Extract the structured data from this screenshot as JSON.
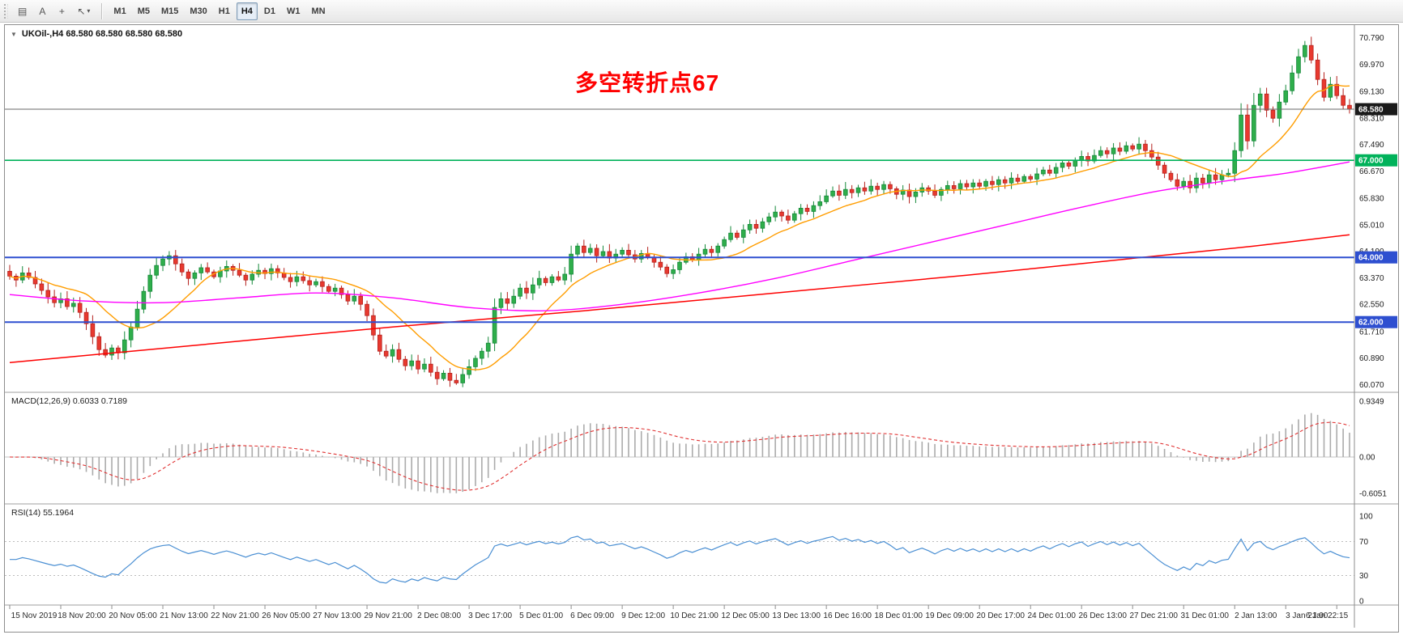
{
  "toolbar": {
    "icons": [
      {
        "name": "chart-window-icon",
        "glyph": "▤"
      },
      {
        "name": "text-label-icon",
        "glyph": "A"
      },
      {
        "name": "crosshair-icon",
        "glyph": "+"
      },
      {
        "name": "cursor-icon",
        "glyph": "↖"
      },
      {
        "name": "cursor-menu-icon",
        "glyph": "▾"
      }
    ],
    "timeframes": [
      "M1",
      "M5",
      "M15",
      "M30",
      "H1",
      "H4",
      "D1",
      "W1",
      "MN"
    ],
    "selected_timeframe": "H4"
  },
  "chart": {
    "collapse_icon": "▼",
    "title": "UKOil-,H4  68.580 68.580 68.580 68.580",
    "annotation": {
      "text": "多空转折点67",
      "color": "#fe0000"
    },
    "current_price": {
      "value": 68.58,
      "label": "68.580",
      "badge_color": "#1a1a1a",
      "line_color": "#6a6a6a"
    },
    "hlines": [
      {
        "value": 67.0,
        "label": "67.000",
        "color": "#00b25a",
        "width": 1.6
      },
      {
        "value": 64.0,
        "label": "64.000",
        "color": "#2e4fd0",
        "width": 2
      },
      {
        "value": 62.0,
        "label": "62.000",
        "color": "#2e4fd0",
        "width": 2
      }
    ],
    "price_ticks": [
      {
        "value": 70.79,
        "label": "70.790"
      },
      {
        "value": 69.97,
        "label": "69.970"
      },
      {
        "value": 69.13,
        "label": "69.130"
      },
      {
        "value": 68.31,
        "label": "68.310"
      },
      {
        "value": 67.49,
        "label": "67.490"
      },
      {
        "value": 66.67,
        "label": "66.670"
      },
      {
        "value": 65.83,
        "label": "65.830"
      },
      {
        "value": 65.01,
        "label": "65.010"
      },
      {
        "value": 64.19,
        "label": "64.190"
      },
      {
        "value": 63.37,
        "label": "63.370"
      },
      {
        "value": 62.55,
        "label": "62.550"
      },
      {
        "value": 61.71,
        "label": "61.710"
      },
      {
        "value": 60.89,
        "label": "60.890"
      },
      {
        "value": 60.07,
        "label": "60.070"
      }
    ]
  },
  "macd_panel": {
    "label": "MACD(12,26,9) 0.6033 0.7189",
    "ticks": [
      {
        "value": 0.9349,
        "label": "0.9349"
      },
      {
        "value": 0,
        "label": "0.00"
      },
      {
        "value": -0.6051,
        "label": "-0.6051"
      }
    ]
  },
  "rsi_panel": {
    "label": "RSI(14) 55.1964",
    "levels": [
      70,
      30
    ],
    "ticks": [
      {
        "value": 100,
        "label": "100"
      },
      {
        "value": 70,
        "label": "70"
      },
      {
        "value": 30,
        "label": "30"
      },
      {
        "value": 0,
        "label": "0"
      }
    ]
  },
  "time_axis": [
    "15 Nov 2019",
    "18 Nov 20:00",
    "20 Nov 05:00",
    "21 Nov 13:00",
    "22 Nov 21:00",
    "26 Nov 05:00",
    "27 Nov 13:00",
    "29 Nov 21:00",
    "2 Dec 08:00",
    "3 Dec 17:00",
    "5 Dec 01:00",
    "6 Dec 09:00",
    "9 Dec 12:00",
    "10 Dec 21:00",
    "12 Dec 05:00",
    "13 Dec 13:00",
    "16 Dec 16:00",
    "18 Dec 01:00",
    "19 Dec 09:00",
    "20 Dec 17:00",
    "24 Dec 01:00",
    "26 Dec 13:00",
    "27 Dec 21:00",
    "31 Dec 01:00",
    "2 Jan 13:00",
    "3 Jan 21:00",
    "6 Jan 22:15"
  ],
  "chart_data": {
    "type": "candlestick",
    "symbol": "UKOil",
    "timeframe": "H4",
    "title": "UKOil-,H4",
    "price_range": [
      59.88,
      70.98
    ],
    "candles_per_time_label": 8,
    "closes": [
      63.42,
      63.3,
      63.52,
      63.38,
      63.18,
      62.98,
      62.78,
      62.6,
      62.72,
      62.48,
      62.58,
      62.3,
      61.95,
      61.55,
      61.15,
      60.98,
      61.2,
      61.05,
      61.45,
      61.85,
      62.4,
      62.95,
      63.45,
      63.75,
      63.95,
      64.05,
      63.8,
      63.55,
      63.35,
      63.52,
      63.68,
      63.55,
      63.4,
      63.58,
      63.72,
      63.6,
      63.45,
      63.3,
      63.48,
      63.6,
      63.5,
      63.65,
      63.52,
      63.38,
      63.25,
      63.4,
      63.28,
      63.15,
      63.25,
      63.1,
      62.95,
      63.05,
      62.85,
      62.65,
      62.8,
      62.55,
      62.2,
      61.6,
      61.1,
      60.95,
      61.15,
      60.85,
      60.65,
      60.8,
      60.55,
      60.7,
      60.45,
      60.25,
      60.42,
      60.2,
      60.12,
      60.38,
      60.62,
      60.88,
      61.1,
      61.35,
      62.45,
      62.72,
      62.58,
      62.8,
      63.05,
      62.9,
      63.15,
      63.35,
      63.22,
      63.4,
      63.3,
      63.48,
      64.1,
      64.35,
      64.15,
      64.28,
      64.05,
      64.18,
      63.98,
      64.1,
      64.22,
      64.08,
      63.95,
      64.12,
      64.0,
      63.85,
      63.7,
      63.5,
      63.62,
      63.85,
      64.02,
      63.92,
      64.1,
      64.25,
      64.15,
      64.35,
      64.55,
      64.75,
      64.62,
      64.85,
      65.02,
      64.9,
      65.1,
      65.25,
      65.4,
      65.28,
      65.15,
      65.35,
      65.52,
      65.42,
      65.6,
      65.72,
      65.9,
      66.05,
      65.92,
      66.1,
      66.0,
      66.15,
      66.05,
      66.2,
      66.1,
      66.25,
      66.12,
      65.95,
      66.08,
      65.88,
      66.02,
      66.15,
      66.05,
      65.92,
      66.1,
      66.22,
      66.12,
      66.28,
      66.18,
      66.3,
      66.2,
      66.35,
      66.25,
      66.4,
      66.3,
      66.45,
      66.35,
      66.5,
      66.42,
      66.58,
      66.7,
      66.6,
      66.78,
      66.92,
      66.82,
      67.0,
      67.12,
      66.98,
      67.15,
      67.3,
      67.2,
      67.38,
      67.28,
      67.45,
      67.35,
      67.5,
      67.3,
      67.1,
      66.85,
      66.6,
      66.4,
      66.2,
      66.35,
      66.15,
      66.45,
      66.3,
      66.55,
      66.4,
      66.55,
      66.6,
      67.3,
      68.4,
      67.6,
      68.7,
      69.05,
      68.55,
      68.3,
      68.8,
      69.15,
      69.7,
      70.2,
      70.55,
      70.1,
      69.5,
      68.95,
      69.35,
      69.0,
      68.7,
      68.58
    ],
    "ma_fast": {
      "method": "sma",
      "period": 13,
      "color": "#ff9d00"
    },
    "ma_mid": {
      "color": "#ff00ff",
      "anchors": [
        [
          0,
          62.85
        ],
        [
          12,
          62.65
        ],
        [
          24,
          62.6
        ],
        [
          36,
          62.75
        ],
        [
          48,
          62.9
        ],
        [
          60,
          62.75
        ],
        [
          72,
          62.45
        ],
        [
          84,
          62.35
        ],
        [
          96,
          62.55
        ],
        [
          108,
          62.9
        ],
        [
          120,
          63.35
        ],
        [
          132,
          63.9
        ],
        [
          144,
          64.45
        ],
        [
          156,
          65.0
        ],
        [
          168,
          65.55
        ],
        [
          180,
          66.05
        ],
        [
          192,
          66.4
        ],
        [
          200,
          66.6
        ],
        [
          210,
          66.95
        ]
      ]
    },
    "ma_slow": {
      "color": "#fe0000",
      "anchors": [
        [
          0,
          60.75
        ],
        [
          30,
          61.3
        ],
        [
          60,
          61.85
        ],
        [
          90,
          62.35
        ],
        [
          120,
          62.9
        ],
        [
          150,
          63.45
        ],
        [
          180,
          64.05
        ],
        [
          195,
          64.35
        ],
        [
          210,
          64.7
        ]
      ]
    },
    "macd": {
      "fast": 12,
      "slow": 26,
      "signal": 9,
      "value": 0.6033,
      "signal_value": 0.7189,
      "hist_color": "#ababab",
      "signal_color": "#e03131",
      "max_label": 0.9349,
      "min_label": -0.6051
    },
    "rsi": {
      "period": 14,
      "value": 55.1964,
      "color": "#4a8fd3"
    },
    "colors": {
      "up_fill": "#2fae4b",
      "up_stroke": "#15893a",
      "down_fill": "#e8392f",
      "down_stroke": "#b5211d",
      "grid": "#c8c8c8",
      "axis_text": "#1c1c1c"
    }
  }
}
